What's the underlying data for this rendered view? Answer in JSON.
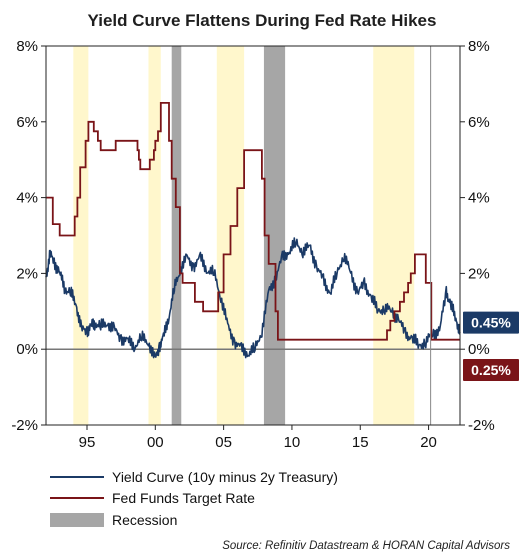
{
  "chart_data": {
    "type": "line",
    "title": "Yield Curve Flattens During Fed Rate Hikes",
    "x_ticks": [
      {
        "year": 1995,
        "label": "95"
      },
      {
        "year": 2000,
        "label": "00"
      },
      {
        "year": 2005,
        "label": "05"
      },
      {
        "year": 2010,
        "label": "10"
      },
      {
        "year": 2015,
        "label": "15"
      },
      {
        "year": 2020,
        "label": "20"
      }
    ],
    "xlim": [
      1992.0,
      2022.3
    ],
    "ylim": [
      -2,
      8
    ],
    "y_ticks": [
      "-2%",
      "0%",
      "2%",
      "4%",
      "6%",
      "8%"
    ],
    "y_tick_values": [
      -2,
      0,
      2,
      4,
      6,
      8
    ],
    "grid": false,
    "zero_line": true,
    "colors": {
      "yield_curve": "#1b3a66",
      "fed_funds": "#7a1418",
      "recession": "#a6a6a6",
      "hike_shading": "#fff7cc",
      "badge_yield": "#1b3a66",
      "badge_fed": "#7a1418"
    },
    "series": [
      {
        "name": "Yield Curve (10y minus 2y Treasury)",
        "x": [
          1992.0,
          1992.3,
          1992.6,
          1993.0,
          1993.4,
          1993.8,
          1994.2,
          1994.6,
          1995.0,
          1995.3,
          1995.6,
          1996.0,
          1996.5,
          1997.0,
          1997.5,
          1998.0,
          1998.5,
          1999.0,
          1999.5,
          2000.0,
          2000.3,
          2000.6,
          2001.0,
          2001.4,
          2001.8,
          2002.3,
          2002.8,
          2003.3,
          2003.8,
          2004.3,
          2004.8,
          2005.3,
          2005.8,
          2006.3,
          2006.8,
          2007.3,
          2007.8,
          2008.3,
          2008.8,
          2009.3,
          2009.8,
          2010.3,
          2010.8,
          2011.3,
          2011.8,
          2012.3,
          2012.8,
          2013.3,
          2013.8,
          2014.3,
          2014.8,
          2015.3,
          2015.8,
          2016.3,
          2016.8,
          2017.3,
          2017.8,
          2018.3,
          2018.8,
          2019.3,
          2019.8,
          2020.3,
          2020.8,
          2021.3,
          2021.6,
          2022.0,
          2022.3
        ],
        "values": [
          1.9,
          2.5,
          2.3,
          2.0,
          1.6,
          1.5,
          1.2,
          0.5,
          0.5,
          0.6,
          0.7,
          0.6,
          0.7,
          0.5,
          0.3,
          0.2,
          0.1,
          0.3,
          0.2,
          -0.3,
          0.1,
          0.3,
          0.9,
          1.6,
          2.1,
          2.4,
          2.2,
          2.4,
          2.1,
          2.0,
          1.4,
          0.6,
          0.2,
          0.0,
          -0.1,
          0.0,
          0.5,
          1.5,
          1.9,
          2.4,
          2.6,
          2.8,
          2.6,
          2.7,
          2.2,
          1.8,
          1.5,
          2.0,
          2.5,
          2.0,
          1.5,
          1.7,
          1.4,
          1.0,
          1.1,
          1.0,
          0.8,
          0.4,
          0.3,
          0.1,
          0.2,
          0.4,
          0.5,
          1.5,
          1.2,
          0.8,
          0.45
        ]
      },
      {
        "name": "Fed Funds Target Rate",
        "x": [
          1992.0,
          1992.5,
          1993.0,
          1994.0,
          1994.1,
          1994.3,
          1994.5,
          1994.9,
          1995.1,
          1995.5,
          1995.8,
          1996.0,
          1997.1,
          1998.7,
          1998.8,
          1998.9,
          1999.5,
          1999.6,
          1999.9,
          2000.0,
          2000.2,
          2000.4,
          2000.9,
          2001.0,
          2001.2,
          2001.5,
          2001.8,
          2002.0,
          2002.9,
          2003.5,
          2004.4,
          2004.6,
          2005.0,
          2005.5,
          2006.0,
          2006.5,
          2007.6,
          2007.8,
          2008.0,
          2008.3,
          2008.8,
          2008.97,
          2015.96,
          2016.96,
          2017.2,
          2017.5,
          2017.9,
          2018.2,
          2018.5,
          2018.7,
          2019.0,
          2019.5,
          2019.8,
          2020.2,
          2022.3
        ],
        "values": [
          4.0,
          3.3,
          3.0,
          3.0,
          3.5,
          4.0,
          4.8,
          5.5,
          6.0,
          5.75,
          5.5,
          5.25,
          5.5,
          5.25,
          5.0,
          4.75,
          4.75,
          5.0,
          5.25,
          5.5,
          5.75,
          6.5,
          6.5,
          5.5,
          4.5,
          3.75,
          2.0,
          1.75,
          1.25,
          1.0,
          1.0,
          1.5,
          2.5,
          3.25,
          4.25,
          5.25,
          5.25,
          4.5,
          3.0,
          2.25,
          1.0,
          0.25,
          0.25,
          0.5,
          0.75,
          1.0,
          1.25,
          1.5,
          1.75,
          2.0,
          2.5,
          2.5,
          1.75,
          0.25,
          0.25
        ]
      }
    ],
    "recessions": [
      [
        2001.2,
        2001.9
      ],
      [
        2007.95,
        2009.5
      ]
    ],
    "hike_periods": [
      [
        1994.0,
        1995.1
      ],
      [
        1999.5,
        2000.4
      ],
      [
        2004.5,
        2006.5
      ],
      [
        2015.95,
        2018.95
      ]
    ],
    "end_labels": {
      "yield_curve": "0.45%",
      "fed_funds": "0.25%"
    },
    "legend": {
      "placement": "bottom-left",
      "items": [
        {
          "label": "Yield Curve (10y minus 2y Treasury)",
          "kind": "line",
          "color": "#1b3a66"
        },
        {
          "label": "Fed Funds Target Rate",
          "kind": "line",
          "color": "#7a1418"
        },
        {
          "label": "Recession",
          "kind": "box",
          "color": "#a6a6a6"
        }
      ]
    },
    "source": "Source: Refinitiv Datastream & HORAN Capital Advisors"
  }
}
